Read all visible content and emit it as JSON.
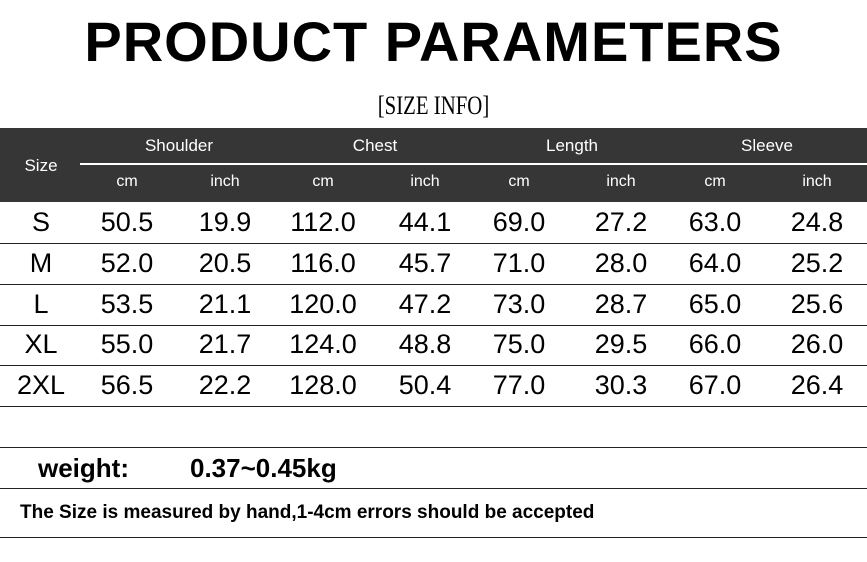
{
  "title": "PRODUCT PARAMETERS",
  "subtitle": "[SIZE INFO]",
  "table": {
    "size_header": "Size",
    "groups": [
      "Shoulder",
      "Chest",
      "Length",
      "Sleeve"
    ],
    "units": [
      "cm",
      "inch",
      "cm",
      "inch",
      "cm",
      "inch",
      "cm",
      "inch"
    ],
    "rows": [
      {
        "size": "S",
        "values": [
          "50.5",
          "19.9",
          "112.0",
          "44.1",
          "69.0",
          "27.2",
          "63.0",
          "24.8"
        ]
      },
      {
        "size": "M",
        "values": [
          "52.0",
          "20.5",
          "116.0",
          "45.7",
          "71.0",
          "28.0",
          "64.0",
          "25.2"
        ]
      },
      {
        "size": "L",
        "values": [
          "53.5",
          "21.1",
          "120.0",
          "47.2",
          "73.0",
          "28.7",
          "65.0",
          "25.6"
        ]
      },
      {
        "size": "XL",
        "values": [
          "55.0",
          "21.7",
          "124.0",
          "48.8",
          "75.0",
          "29.5",
          "66.0",
          "26.0"
        ]
      },
      {
        "size": "2XL",
        "values": [
          "56.5",
          "22.2",
          "128.0",
          "50.4",
          "77.0",
          "30.3",
          "67.0",
          "26.4"
        ]
      }
    ]
  },
  "weight": {
    "label": "weight:",
    "value": "0.37~0.45kg"
  },
  "note": "The Size is measured by hand,1-4cm errors should be accepted",
  "colors": {
    "header_bg": "#363636",
    "header_text": "#ffffff"
  }
}
